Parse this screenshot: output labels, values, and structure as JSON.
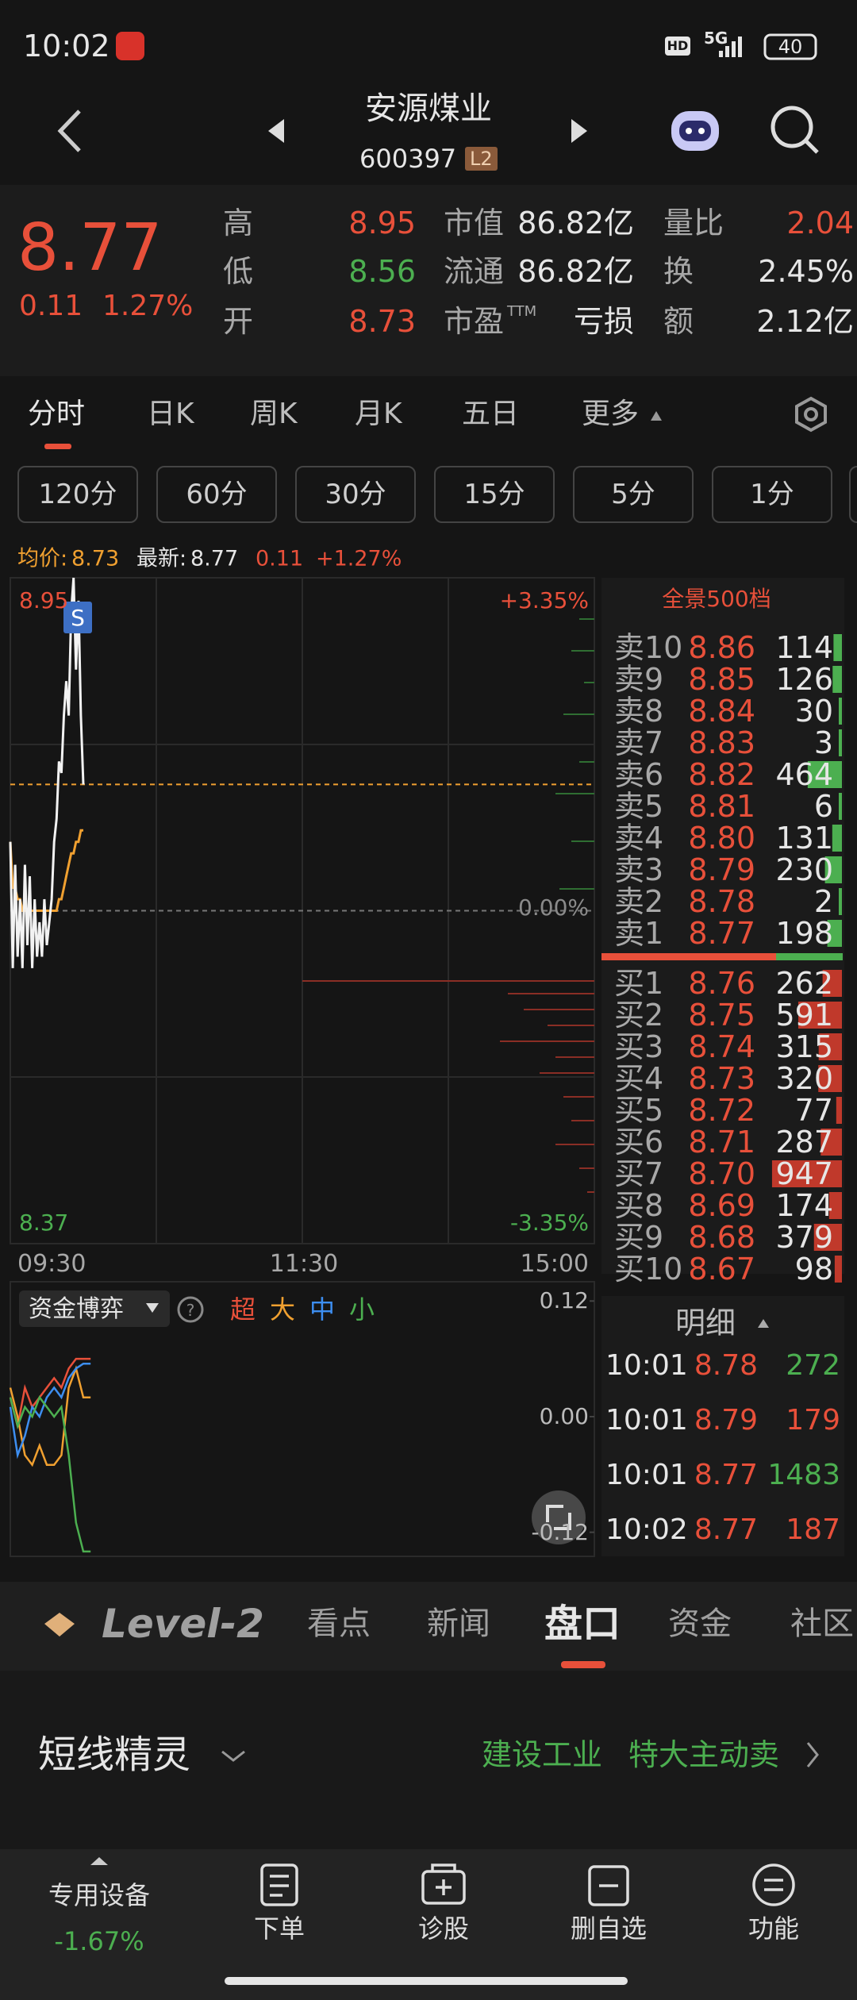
{
  "status_bar": {
    "time": "10:02",
    "hd": "HD",
    "network": "5G",
    "battery": "40"
  },
  "header": {
    "title": "安源煤业",
    "code": "600397",
    "badge": "L2"
  },
  "quote": {
    "price": "8.77",
    "change": "0.11",
    "change_pct": "1.27%",
    "fields": [
      {
        "label": "高",
        "value": "8.95"
      },
      {
        "label": "低",
        "value": "8.56"
      },
      {
        "label": "开",
        "value": "8.73"
      },
      {
        "label": "市值",
        "value": "86.82亿"
      },
      {
        "label": "流通",
        "value": "86.82亿"
      },
      {
        "label": "市盈",
        "sup": "TTM",
        "value": "亏损"
      },
      {
        "label": "量比",
        "value": "2.04"
      },
      {
        "label": "换",
        "value": "2.45%"
      },
      {
        "label": "额",
        "value": "2.12亿"
      }
    ]
  },
  "tabs": [
    "分时",
    "日K",
    "周K",
    "月K",
    "五日",
    "更多"
  ],
  "periods": [
    "120分",
    "60分",
    "30分",
    "15分",
    "5分",
    "1分"
  ],
  "chart_info": {
    "avg_label": "均价:",
    "avg": "8.73",
    "latest_label": "最新:",
    "latest": "8.77",
    "change": "0.11",
    "change_pct": "+1.27%"
  },
  "intraday": {
    "ylim": [
      8.37,
      8.95
    ],
    "yticks": [
      8.95,
      8.37
    ],
    "y2ticks": [
      {
        "value": 8.95,
        "label": "+3.35%"
      },
      {
        "value": 8.66,
        "label": "0.00%"
      },
      {
        "value": 8.37,
        "label": "-3.35%"
      }
    ],
    "time_labels": [
      "09:30",
      "11:30",
      "15:00"
    ],
    "marker": "S",
    "price_color": "#f2f2f2",
    "avg_color": "#f0a030",
    "price": [
      8.72,
      8.61,
      8.7,
      8.62,
      8.67,
      8.61,
      8.7,
      8.63,
      8.69,
      8.61,
      8.67,
      8.62,
      8.65,
      8.62,
      8.67,
      8.63,
      8.65,
      8.67,
      8.72,
      8.74,
      8.79,
      8.78,
      8.83,
      8.86,
      8.83,
      8.92,
      8.95,
      8.87,
      8.93,
      8.83,
      8.77
    ],
    "avg": [
      8.72,
      8.68,
      8.68,
      8.67,
      8.67,
      8.66,
      8.66,
      8.66,
      8.66,
      8.66,
      8.66,
      8.66,
      8.66,
      8.66,
      8.66,
      8.66,
      8.66,
      8.66,
      8.66,
      8.66,
      8.67,
      8.67,
      8.68,
      8.69,
      8.7,
      8.71,
      8.71,
      8.72,
      8.72,
      8.73,
      8.73
    ]
  },
  "fund": {
    "selector": "资金博弈",
    "ylim": [
      -0.145,
      0.14
    ],
    "yticks": [
      {
        "value": 0.12,
        "label": "0.12"
      },
      {
        "value": 0,
        "label": "0.00"
      },
      {
        "value": -0.12,
        "label": "-0.12"
      }
    ],
    "x": [
      0,
      3,
      6,
      9,
      12,
      15,
      18,
      21,
      24,
      27,
      30,
      33
    ],
    "series": [
      {
        "name": "超",
        "color": "#e8503a",
        "values": [
          0.02,
          -0.01,
          0.03,
          0.01,
          0.02,
          0.03,
          0.04,
          0.03,
          0.05,
          0.06,
          0.06,
          0.06
        ]
      },
      {
        "name": "大",
        "color": "#f0a030",
        "values": [
          0.03,
          0.0,
          -0.04,
          -0.05,
          -0.03,
          -0.05,
          -0.05,
          -0.04,
          0.03,
          0.05,
          0.02,
          0.02
        ]
      },
      {
        "name": "中",
        "color": "#3d8ef0",
        "values": [
          0.01,
          -0.04,
          -0.02,
          0.01,
          0.0,
          0.02,
          0.03,
          0.02,
          0.04,
          0.05,
          0.055,
          0.055
        ]
      },
      {
        "name": "小",
        "color": "#4caf50",
        "values": [
          0.02,
          -0.01,
          0.01,
          0.0,
          0.02,
          0.01,
          0.0,
          0.01,
          -0.04,
          -0.11,
          -0.14,
          -0.14
        ]
      }
    ]
  },
  "orderbook": {
    "title": "全景500档",
    "asks": [
      {
        "label": "卖10",
        "price": "8.86",
        "volume": 114
      },
      {
        "label": "卖9",
        "price": "8.85",
        "volume": 126
      },
      {
        "label": "卖8",
        "price": "8.84",
        "volume": 30
      },
      {
        "label": "卖7",
        "price": "8.83",
        "volume": 3
      },
      {
        "label": "卖6",
        "price": "8.82",
        "volume": 464
      },
      {
        "label": "卖5",
        "price": "8.81",
        "volume": 6
      },
      {
        "label": "卖4",
        "price": "8.80",
        "volume": 131
      },
      {
        "label": "卖3",
        "price": "8.79",
        "volume": 230
      },
      {
        "label": "卖2",
        "price": "8.78",
        "volume": 2
      },
      {
        "label": "卖1",
        "price": "8.77",
        "volume": 198
      }
    ],
    "bids": [
      {
        "label": "买1",
        "price": "8.76",
        "volume": 262
      },
      {
        "label": "买2",
        "price": "8.75",
        "volume": 591
      },
      {
        "label": "买3",
        "price": "8.74",
        "volume": 315
      },
      {
        "label": "买4",
        "price": "8.73",
        "volume": 320
      },
      {
        "label": "买5",
        "price": "8.72",
        "volume": 77
      },
      {
        "label": "买6",
        "price": "8.71",
        "volume": 287
      },
      {
        "label": "买7",
        "price": "8.70",
        "volume": 947
      },
      {
        "label": "买8",
        "price": "8.69",
        "volume": 174
      },
      {
        "label": "买9",
        "price": "8.68",
        "volume": 379
      },
      {
        "label": "买10",
        "price": "8.67",
        "volume": 98
      }
    ],
    "ask_color": "#4caf50",
    "bid_color": "#c0392b"
  },
  "trades": {
    "title": "明细",
    "rows": [
      {
        "time": "10:01",
        "price": "8.78",
        "volume": 272,
        "color": "#4caf50"
      },
      {
        "time": "10:01",
        "price": "8.79",
        "volume": 179,
        "color": "#e8503a"
      },
      {
        "time": "10:01",
        "price": "8.77",
        "volume": 1483,
        "color": "#4caf50"
      },
      {
        "time": "10:02",
        "price": "8.77",
        "volume": 187,
        "color": "#e8503a"
      }
    ]
  },
  "bottom_tabs": [
    "Level-2",
    "看点",
    "新闻",
    "盘口",
    "资金",
    "社区"
  ],
  "spirit": {
    "title": "短线精灵",
    "tags": [
      "建设工业",
      "特大主动卖"
    ]
  },
  "nav": {
    "sector": "专用设备",
    "sector_change": "-1.67%",
    "items": [
      "下单",
      "诊股",
      "删自选",
      "功能"
    ]
  }
}
